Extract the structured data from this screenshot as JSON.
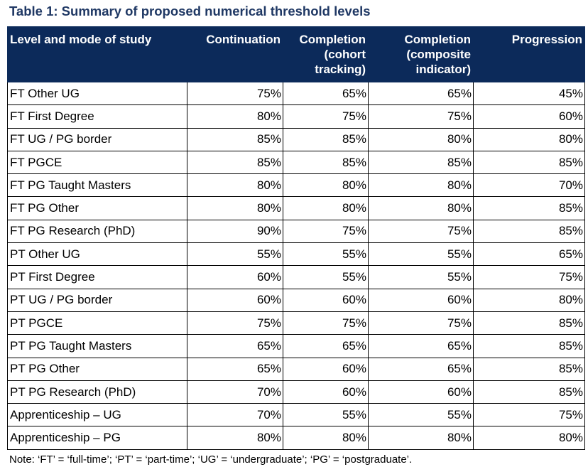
{
  "title": "Table 1: Summary of proposed numerical threshold levels",
  "table": {
    "headers": [
      [
        "Level and mode of study"
      ],
      [
        "Continuation"
      ],
      [
        "Completion",
        "(cohort",
        "tracking)"
      ],
      [
        "Completion",
        "(composite",
        "indicator)"
      ],
      [
        "Progression"
      ]
    ],
    "rows": [
      [
        "FT Other UG",
        "75%",
        "65%",
        "65%",
        "45%"
      ],
      [
        "FT First Degree",
        "80%",
        "75%",
        "75%",
        "60%"
      ],
      [
        "FT UG / PG border",
        "85%",
        "85%",
        "80%",
        "80%"
      ],
      [
        "FT PGCE",
        "85%",
        "85%",
        "85%",
        "85%"
      ],
      [
        "FT PG Taught Masters",
        "80%",
        "80%",
        "80%",
        "70%"
      ],
      [
        "FT PG Other",
        "80%",
        "80%",
        "80%",
        "85%"
      ],
      [
        "FT PG Research (PhD)",
        "90%",
        "75%",
        "75%",
        "85%"
      ],
      [
        "PT Other UG",
        "55%",
        "55%",
        "55%",
        "65%"
      ],
      [
        "PT First Degree",
        "60%",
        "55%",
        "55%",
        "75%"
      ],
      [
        "PT UG / PG border",
        "60%",
        "60%",
        "60%",
        "80%"
      ],
      [
        "PT PGCE",
        "75%",
        "75%",
        "75%",
        "85%"
      ],
      [
        "PT PG Taught Masters",
        "65%",
        "65%",
        "65%",
        "85%"
      ],
      [
        "PT PG Other",
        "65%",
        "60%",
        "65%",
        "85%"
      ],
      [
        "PT PG Research (PhD)",
        "70%",
        "60%",
        "60%",
        "85%"
      ],
      [
        "Apprenticeship – UG",
        "70%",
        "55%",
        "55%",
        "75%"
      ],
      [
        "Apprenticeship – PG",
        "80%",
        "80%",
        "80%",
        "80%"
      ]
    ]
  },
  "note": "Note: ‘FT’ = ‘full-time’; ‘PT’ = ‘part-time’; ‘UG’ = ‘undergraduate’; ‘PG’ = ‘postgraduate’.",
  "colors": {
    "title": "#1f3864",
    "header_background": "#0c2a5a",
    "header_text": "#ffffff"
  }
}
